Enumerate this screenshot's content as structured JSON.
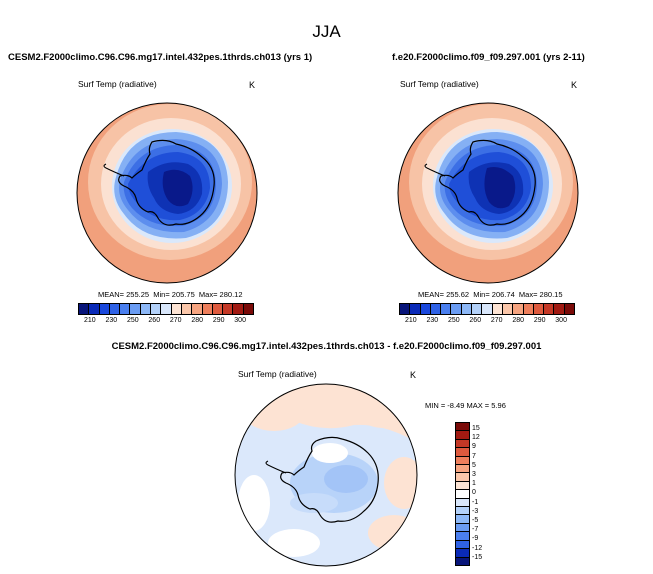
{
  "main_title": "JJA",
  "panels": [
    {
      "case_title": "CESM2.F2000climo.C96.C96.mg17.intel.432pes.1thrds.ch013 (yrs 1)",
      "variable": "Surf Temp (radiative)",
      "units": "K",
      "mean_label": "MEAN= 255.25",
      "min_label": "Min= 205.75",
      "max_label": "Max= 280.12"
    },
    {
      "case_title": "f.e20.F2000climo.f09_f09.297.001 (yrs 2-11)",
      "variable": "Surf Temp (radiative)",
      "units": "K",
      "mean_label": "MEAN= 255.62",
      "min_label": "Min= 206.74",
      "max_label": "Max= 280.15"
    }
  ],
  "diff_panel": {
    "title": "CESM2.F2000climo.C96.C96.mg17.intel.432pes.1thrds.ch013 - f.e20.F2000climo.f09_f09.297.001",
    "variable": "Surf Temp (radiative)",
    "units": "K",
    "minmax_label": "MIN =  -8.49 MAX =   5.96"
  },
  "abs_colorbar": {
    "tick_labels": [
      "210",
      "230",
      "250",
      "260",
      "270",
      "280",
      "290",
      "300"
    ],
    "colors": [
      "#08157a",
      "#0a2ab8",
      "#1a48dc",
      "#2f62e6",
      "#4a7fef",
      "#6a9cf3",
      "#8db8f7",
      "#b3d1f9",
      "#d9e7fb",
      "#fde4d4",
      "#fbc7aa",
      "#f6a480",
      "#ee7f5c",
      "#de5a3e",
      "#c43826",
      "#a11a12",
      "#7a0a08"
    ]
  },
  "diff_colorbar": {
    "tick_labels": [
      "15",
      "12",
      "9",
      "7",
      "5",
      "3",
      "1",
      "0",
      "-1",
      "-3",
      "-5",
      "-7",
      "-9",
      "-12",
      "-15"
    ],
    "colors": [
      "#7a0a08",
      "#a11a12",
      "#c43826",
      "#de5a3e",
      "#ee7f5c",
      "#f6a480",
      "#fbc7aa",
      "#fde4d4",
      "#ffffff",
      "#d9e7fb",
      "#b3d1f9",
      "#8db8f7",
      "#6a9cf3",
      "#4a7fef",
      "#2f62e6",
      "#0a2ab8",
      "#08157a"
    ]
  }
}
